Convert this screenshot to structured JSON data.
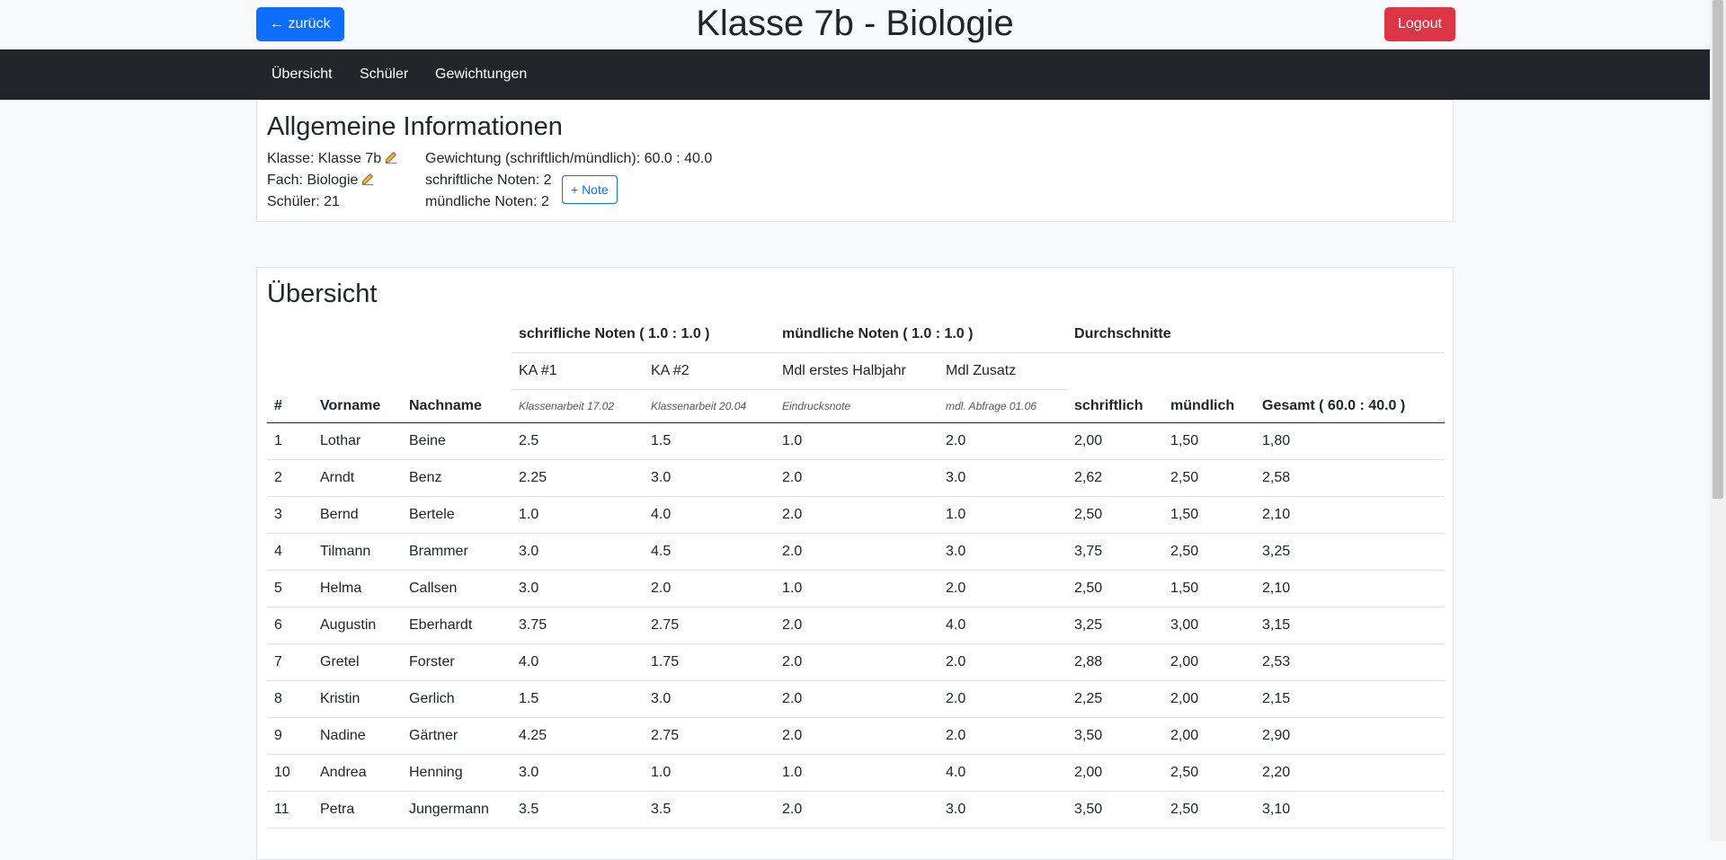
{
  "header": {
    "back_label": "← zurück",
    "title": "Klasse 7b - Biologie",
    "logout_label": "Logout"
  },
  "nav": {
    "items": [
      {
        "label": "Übersicht"
      },
      {
        "label": "Schüler"
      },
      {
        "label": "Gewichtungen"
      }
    ]
  },
  "info": {
    "title": "Allgemeine Informationen",
    "klasse": "Klasse: Klasse 7b",
    "fach": "Fach: Biologie",
    "schueler": "Schüler: 21",
    "gewichtung": "Gewichtung (schriftlich/mündlich): 60.0 : 40.0",
    "schriftliche": "schriftliche Noten: 2",
    "muendliche": "mündliche Noten: 2",
    "note_button": "+ Note"
  },
  "overview": {
    "title": "Übersicht",
    "group_written": "schrifliche Noten ( 1.0 : 1.0 )",
    "group_oral": "mündliche Noten ( 1.0 : 1.0 )",
    "group_avg": "Durchschnitte",
    "col_num": "#",
    "col_first": "Vorname",
    "col_last": "Nachname",
    "exams": [
      {
        "name": "KA #1",
        "desc": "Klassenarbeit 17.02"
      },
      {
        "name": "KA #2",
        "desc": "Klassenarbeit 20.04"
      },
      {
        "name": "Mdl erstes Halbjahr",
        "desc": "Eindrucksnote"
      },
      {
        "name": "Mdl Zusatz",
        "desc": "mdl. Abfrage 01.06"
      }
    ],
    "col_written": "schriftlich",
    "col_oral": "mündlich",
    "col_total": "Gesamt ( 60.0 : 40.0 )",
    "rows": [
      [
        "1",
        "Lothar",
        "Beine",
        "2.5",
        "1.5",
        "1.0",
        "2.0",
        "2,00",
        "1,50",
        "1,80"
      ],
      [
        "2",
        "Arndt",
        "Benz",
        "2.25",
        "3.0",
        "2.0",
        "3.0",
        "2,62",
        "2,50",
        "2,58"
      ],
      [
        "3",
        "Bernd",
        "Bertele",
        "1.0",
        "4.0",
        "2.0",
        "1.0",
        "2,50",
        "1,50",
        "2,10"
      ],
      [
        "4",
        "Tilmann",
        "Brammer",
        "3.0",
        "4.5",
        "2.0",
        "3.0",
        "3,75",
        "2,50",
        "3,25"
      ],
      [
        "5",
        "Helma",
        "Callsen",
        "3.0",
        "2.0",
        "1.0",
        "2.0",
        "2,50",
        "1,50",
        "2,10"
      ],
      [
        "6",
        "Augustin",
        "Eberhardt",
        "3.75",
        "2.75",
        "2.0",
        "4.0",
        "3,25",
        "3,00",
        "3,15"
      ],
      [
        "7",
        "Gretel",
        "Forster",
        "4.0",
        "1.75",
        "2.0",
        "2.0",
        "2,88",
        "2,00",
        "2,53"
      ],
      [
        "8",
        "Kristin",
        "Gerlich",
        "1.5",
        "3.0",
        "2.0",
        "2.0",
        "2,25",
        "2,00",
        "2,15"
      ],
      [
        "9",
        "Nadine",
        "Gärtner",
        "4.25",
        "2.75",
        "2.0",
        "2.0",
        "3,50",
        "2,00",
        "2,90"
      ],
      [
        "10",
        "Andrea",
        "Henning",
        "3.0",
        "1.0",
        "1.0",
        "4.0",
        "2,00",
        "2,50",
        "2,20"
      ],
      [
        "11",
        "Petra",
        "Jungermann",
        "3.5",
        "3.5",
        "2.0",
        "3.0",
        "3,50",
        "2,50",
        "3,10"
      ]
    ]
  }
}
